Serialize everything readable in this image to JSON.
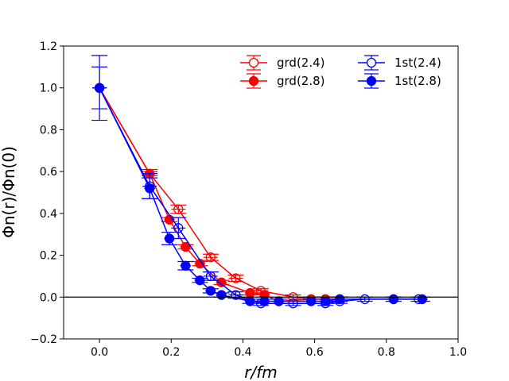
{
  "chart_data": {
    "type": "scatter",
    "title": "",
    "xlabel": "r/fm",
    "ylabel": "Φn(r)/Φn(0)",
    "xlim": [
      -0.1,
      1.0
    ],
    "ylim": [
      -0.2,
      1.2
    ],
    "xticks": [
      "0.0",
      "0.2",
      "0.4",
      "0.6",
      "0.8",
      "1.0"
    ],
    "yticks": [
      "−0.2",
      "0.0",
      "0.2",
      "0.4",
      "0.6",
      "0.8",
      "1.0",
      "1.2"
    ],
    "xtick_values": [
      0.0,
      0.2,
      0.4,
      0.6,
      0.8,
      1.0
    ],
    "ytick_values": [
      -0.2,
      0.0,
      0.2,
      0.4,
      0.6,
      0.8,
      1.0,
      1.2
    ],
    "reference_line_y": 0.0,
    "legend_position": "top-right",
    "series": [
      {
        "name": "grd(2.4)",
        "color": "#ff0000",
        "marker": "open-circle",
        "x": [
          0.0,
          0.14,
          0.22,
          0.31,
          0.38,
          0.45,
          0.54,
          0.59,
          0.63,
          0.67
        ],
        "y": [
          1.0,
          0.59,
          0.42,
          0.19,
          0.09,
          0.03,
          0.0,
          -0.01,
          -0.01,
          -0.01
        ],
        "xerr": [
          0.02,
          0.015,
          0.02,
          0.02,
          0.02,
          0.02,
          0.02,
          0.02,
          0.02,
          0.02
        ],
        "yerr": [
          0.0,
          0.02,
          0.02,
          0.015,
          0.015,
          0.01,
          0.01,
          0.01,
          0.01,
          0.01
        ]
      },
      {
        "name": "grd(2.8)",
        "color": "#ff0000",
        "marker": "filled-circle",
        "x": [
          0.0,
          0.14,
          0.195,
          0.24,
          0.28,
          0.34,
          0.42,
          0.46,
          0.5,
          0.59,
          0.63,
          0.67
        ],
        "y": [
          1.0,
          0.59,
          0.37,
          0.24,
          0.16,
          0.07,
          0.02,
          0.01,
          -0.02,
          -0.01,
          -0.01,
          -0.01
        ],
        "xerr": [
          0.02,
          0.015,
          0.015,
          0.015,
          0.015,
          0.015,
          0.015,
          0.015,
          0.015,
          0.015,
          0.015,
          0.015
        ],
        "yerr": [
          0.0,
          0.01,
          0.01,
          0.01,
          0.01,
          0.01,
          0.01,
          0.01,
          0.01,
          0.01,
          0.01,
          0.01
        ]
      },
      {
        "name": "1st(2.4)",
        "color": "#0000ff",
        "marker": "open-circle",
        "x": [
          0.0,
          0.14,
          0.22,
          0.31,
          0.38,
          0.45,
          0.54,
          0.63,
          0.67,
          0.74,
          0.82,
          0.89
        ],
        "y": [
          1.0,
          0.53,
          0.33,
          0.1,
          0.01,
          -0.03,
          -0.03,
          -0.03,
          -0.02,
          -0.01,
          -0.01,
          -0.01
        ],
        "xerr": [
          0.02,
          0.02,
          0.02,
          0.02,
          0.02,
          0.02,
          0.02,
          0.02,
          0.02,
          0.02,
          0.02,
          0.02
        ],
        "yerr": [
          0.155,
          0.06,
          0.05,
          0.02,
          0.015,
          0.01,
          0.01,
          0.01,
          0.01,
          0.01,
          0.01,
          0.01
        ]
      },
      {
        "name": "1st(2.8)",
        "color": "#0000ff",
        "marker": "filled-circle",
        "x": [
          0.0,
          0.14,
          0.195,
          0.24,
          0.28,
          0.31,
          0.34,
          0.42,
          0.46,
          0.5,
          0.59,
          0.63,
          0.67,
          0.82,
          0.9
        ],
        "y": [
          1.0,
          0.52,
          0.28,
          0.15,
          0.08,
          0.03,
          0.01,
          -0.02,
          -0.02,
          -0.02,
          -0.02,
          -0.02,
          -0.01,
          -0.01,
          -0.01
        ],
        "xerr": [
          0.02,
          0.015,
          0.015,
          0.015,
          0.015,
          0.015,
          0.015,
          0.015,
          0.015,
          0.015,
          0.015,
          0.015,
          0.015,
          0.015,
          0.015
        ],
        "yerr": [
          0.1,
          0.05,
          0.03,
          0.02,
          0.01,
          0.01,
          0.01,
          0.01,
          0.01,
          0.01,
          0.01,
          0.01,
          0.01,
          0.01,
          0.01
        ]
      }
    ]
  }
}
